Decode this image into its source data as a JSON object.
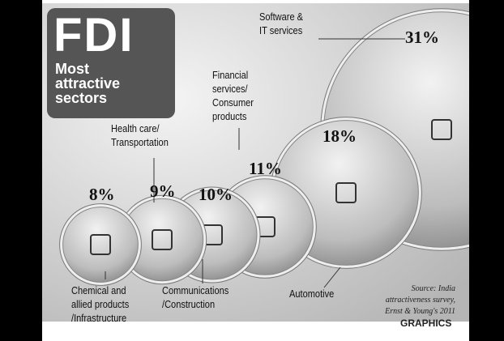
{
  "chart_data": {
    "type": "bubble",
    "title": "FDI",
    "subtitle": "Most\nattractive\nsectors",
    "categories": [
      "Chemical and\nallied products\n/Infrastructure",
      "Health care/\nTransportation",
      "Communications\n/Construction",
      "Financial\nservices/\nConsumer\nproducts",
      "Automotive",
      "Software &\nIT services"
    ],
    "values": [
      8,
      9,
      10,
      11,
      18,
      31
    ],
    "value_labels": [
      "8%",
      "9%",
      "10%",
      "11%",
      "18%",
      "31%"
    ],
    "color": "#b8b8b8",
    "source": "Source: India\nattractiveness survey,\nErnst & Young's 2011",
    "credit": "GRAPHICS"
  }
}
